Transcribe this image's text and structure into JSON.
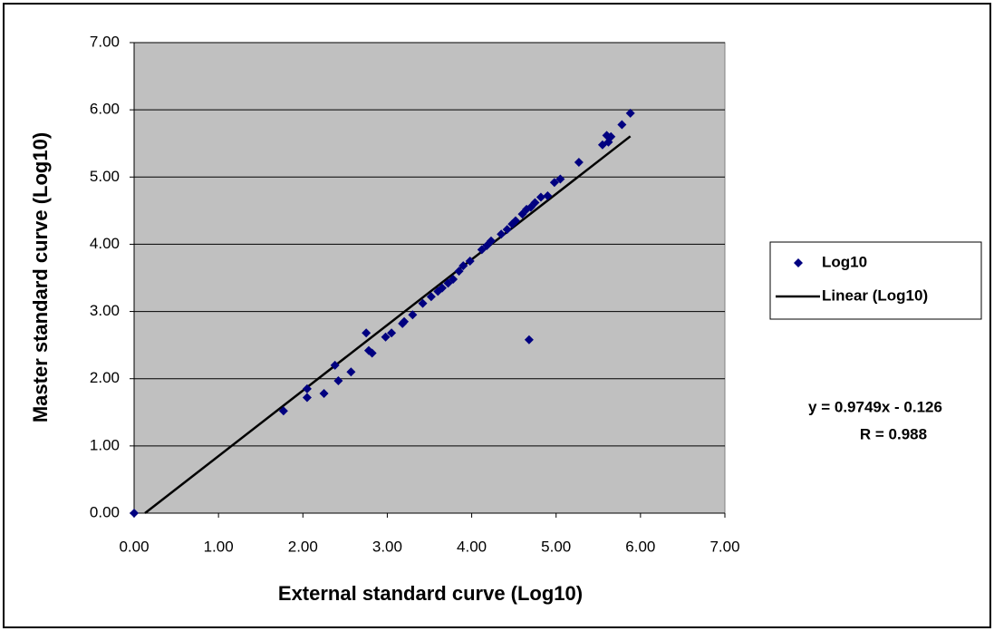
{
  "chart_data": {
    "type": "scatter",
    "x_label": "External standard curve (Log10)",
    "y_label": "Master standard curve (Log10)",
    "x": [
      0,
      1.77,
      2.05,
      2.05,
      2.25,
      2.38,
      2.42,
      2.57,
      2.75,
      2.78,
      2.82,
      2.98,
      3.05,
      3.18,
      3.2,
      3.3,
      3.42,
      3.52,
      3.6,
      3.65,
      3.72,
      3.78,
      3.85,
      3.9,
      3.98,
      4.12,
      4.18,
      4.23,
      4.35,
      4.42,
      4.48,
      4.52,
      4.6,
      4.65,
      4.68,
      4.7,
      4.75,
      4.82,
      4.9,
      4.98,
      5.05,
      5.27,
      5.55,
      5.6,
      5.62,
      5.65,
      5.78,
      5.88
    ],
    "series": [
      {
        "name": "Log10",
        "color": "#000080",
        "values": [
          0,
          1.52,
          1.85,
          1.72,
          1.78,
          2.2,
          1.97,
          2.1,
          2.68,
          2.42,
          2.38,
          2.62,
          2.68,
          2.82,
          2.85,
          2.95,
          3.12,
          3.22,
          3.3,
          3.35,
          3.42,
          3.48,
          3.6,
          3.68,
          3.75,
          3.92,
          3.98,
          4.05,
          4.15,
          4.22,
          4.3,
          4.35,
          4.45,
          4.52,
          2.58,
          4.55,
          4.62,
          4.7,
          4.72,
          4.92,
          4.97,
          5.22,
          5.48,
          5.62,
          5.52,
          5.6,
          5.78,
          5.95
        ]
      }
    ],
    "trendline": {
      "name": "Linear (Log10)",
      "color": "#000000",
      "slope": 0.9749,
      "intercept": -0.126
    },
    "annotations": [
      "y = 0.9749x - 0.126",
      "R = 0.988"
    ],
    "xlim": [
      0,
      7
    ],
    "ylim": [
      0,
      7
    ],
    "xticks": [
      {
        "value": 0,
        "label": "0.00"
      },
      {
        "value": 1,
        "label": "1.00"
      },
      {
        "value": 2,
        "label": "2.00"
      },
      {
        "value": 3,
        "label": "3.00"
      },
      {
        "value": 4,
        "label": "4.00"
      },
      {
        "value": 5,
        "label": "5.00"
      },
      {
        "value": 6,
        "label": "6.00"
      },
      {
        "value": 7,
        "label": "7.00"
      }
    ],
    "yticks": [
      {
        "value": 0,
        "label": "0.00"
      },
      {
        "value": 1,
        "label": "1.00"
      },
      {
        "value": 2,
        "label": "2.00"
      },
      {
        "value": 3,
        "label": "3.00"
      },
      {
        "value": 4,
        "label": "4.00"
      },
      {
        "value": 5,
        "label": "5.00"
      },
      {
        "value": 6,
        "label": "6.00"
      },
      {
        "value": 7,
        "label": "7.00"
      }
    ],
    "grid": true,
    "plot_background": "#c0c0c0",
    "legend": "right"
  }
}
